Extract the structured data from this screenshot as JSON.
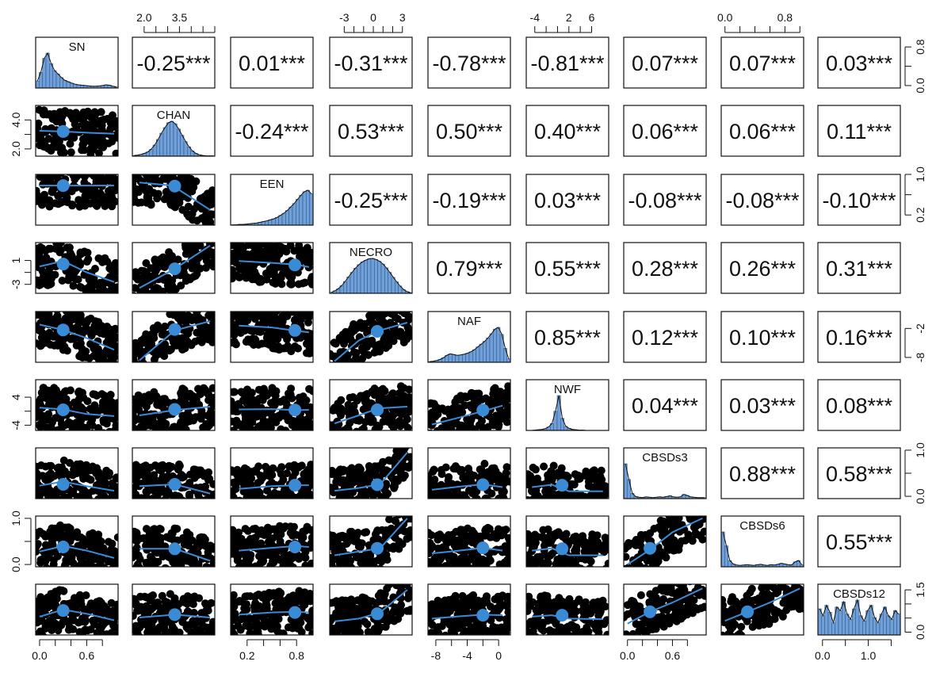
{
  "chart_data": {
    "type": "scatterplot-matrix",
    "variables": [
      "SN",
      "CHAN",
      "EEN",
      "NECRO",
      "NAF",
      "NWF",
      "CBSDs3",
      "CBSDs6",
      "CBSDs12"
    ],
    "correlation_matrix": [
      [
        "",
        "-0.25***",
        "0.01***",
        "-0.31***",
        "-0.78***",
        "-0.81***",
        "0.07***",
        "0.07***",
        "0.03***"
      ],
      [
        "",
        "",
        "-0.24***",
        "0.53***",
        "0.50***",
        "0.40***",
        "0.06***",
        "0.06***",
        "0.11***"
      ],
      [
        "",
        "",
        "",
        "-0.25***",
        "-0.19***",
        "0.03***",
        "-0.08***",
        "-0.08***",
        "-0.10***"
      ],
      [
        "",
        "",
        "",
        "",
        "0.79***",
        "0.55***",
        "0.28***",
        "0.26***",
        "0.31***"
      ],
      [
        "",
        "",
        "",
        "",
        "",
        "0.85***",
        "0.12***",
        "0.10***",
        "0.16***"
      ],
      [
        "",
        "",
        "",
        "",
        "",
        "",
        "0.04***",
        "0.03***",
        "0.08***"
      ],
      [
        "",
        "",
        "",
        "",
        "",
        "",
        "",
        "0.88***",
        "0.58***"
      ],
      [
        "",
        "",
        "",
        "",
        "",
        "",
        "",
        "",
        "0.55***"
      ],
      [
        "",
        "",
        "",
        "",
        "",
        "",
        "",
        "",
        ""
      ]
    ],
    "ranges": {
      "SN": [
        -0.05,
        1.0
      ],
      "CHAN": [
        1.5,
        5.0
      ],
      "EEN": [
        0.0,
        1.0
      ],
      "NECRO": [
        -4.5,
        4.0
      ],
      "NAF": [
        -9.0,
        1.5
      ],
      "NWF": [
        -5.5,
        9.0
      ],
      "CBSDs3": [
        -0.05,
        1.05
      ],
      "CBSDs6": [
        -0.05,
        1.05
      ],
      "CBSDs12": [
        -0.1,
        1.7
      ]
    },
    "histograms": {
      "SN": [
        0.2,
        0.45,
        0.85,
        1.0,
        0.7,
        0.5,
        0.4,
        0.3,
        0.22,
        0.18,
        0.14,
        0.11,
        0.09,
        0.08,
        0.07,
        0.06,
        0.05,
        0.05,
        0.06,
        0.07,
        0.09,
        0.08,
        0.05,
        0.03
      ],
      "CHAN": [
        0.02,
        0.03,
        0.05,
        0.08,
        0.12,
        0.2,
        0.32,
        0.48,
        0.66,
        0.82,
        0.96,
        1.0,
        0.93,
        0.78,
        0.6,
        0.42,
        0.27,
        0.15,
        0.08,
        0.04,
        0.02,
        0.01,
        0.01,
        0.01
      ],
      "EEN": [
        0.01,
        0.01,
        0.02,
        0.02,
        0.03,
        0.04,
        0.05,
        0.06,
        0.08,
        0.1,
        0.12,
        0.15,
        0.18,
        0.22,
        0.28,
        0.34,
        0.42,
        0.52,
        0.62,
        0.74,
        0.86,
        0.96,
        1.0,
        0.9
      ],
      "NECRO": [
        0.03,
        0.07,
        0.13,
        0.22,
        0.34,
        0.47,
        0.6,
        0.72,
        0.82,
        0.9,
        0.95,
        0.99,
        1.0,
        0.97,
        0.92,
        0.84,
        0.73,
        0.6,
        0.46,
        0.33,
        0.21,
        0.11,
        0.05,
        0.02
      ],
      "NAF": [
        0.02,
        0.03,
        0.05,
        0.08,
        0.13,
        0.2,
        0.24,
        0.22,
        0.2,
        0.21,
        0.23,
        0.26,
        0.3,
        0.36,
        0.44,
        0.52,
        0.6,
        0.7,
        0.82,
        0.95,
        1.0,
        0.8,
        0.4,
        0.1
      ],
      "NWF": [
        0.0,
        0.0,
        0.01,
        0.02,
        0.03,
        0.05,
        0.1,
        0.2,
        0.55,
        1.0,
        0.35,
        0.12,
        0.06,
        0.03,
        0.02,
        0.01,
        0.01,
        0.0,
        0.0,
        0.0,
        0.0,
        0.0,
        0.0,
        0.0
      ],
      "CBSDs3": [
        1.0,
        0.55,
        0.15,
        0.06,
        0.04,
        0.03,
        0.05,
        0.04,
        0.03,
        0.04,
        0.05,
        0.04,
        0.06,
        0.08,
        0.05,
        0.04,
        0.05,
        0.12,
        0.09,
        0.05,
        0.04,
        0.03,
        0.03,
        0.03
      ],
      "CBSDs6": [
        1.0,
        0.6,
        0.18,
        0.08,
        0.05,
        0.04,
        0.05,
        0.06,
        0.05,
        0.04,
        0.06,
        0.07,
        0.05,
        0.04,
        0.06,
        0.05,
        0.07,
        0.1,
        0.08,
        0.06,
        0.05,
        0.14,
        0.18,
        0.06
      ],
      "CBSDs12": [
        0.75,
        0.55,
        0.85,
        0.65,
        0.35,
        0.8,
        0.7,
        0.95,
        0.6,
        0.45,
        0.75,
        1.0,
        0.55,
        0.4,
        0.7,
        0.85,
        0.5,
        0.35,
        0.6,
        0.8,
        0.55,
        0.45,
        0.7,
        0.6
      ]
    },
    "loess_lines": {
      "1-0": [
        [
          0.0,
          3.25
        ],
        [
          0.3,
          3.2
        ],
        [
          0.6,
          3.12
        ],
        [
          0.95,
          3.05
        ]
      ],
      "2-0": [
        [
          0.0,
          0.78
        ],
        [
          0.3,
          0.78
        ],
        [
          0.6,
          0.78
        ],
        [
          0.95,
          0.78
        ]
      ],
      "2-1": [
        [
          1.8,
          0.84
        ],
        [
          3.2,
          0.78
        ],
        [
          4.8,
          0.3
        ]
      ],
      "3-0": [
        [
          0.0,
          0.0
        ],
        [
          0.3,
          0.9
        ],
        [
          0.6,
          -1.0
        ],
        [
          0.95,
          -2.6
        ]
      ],
      "3-1": [
        [
          1.8,
          -3.6
        ],
        [
          3.3,
          -0.4
        ],
        [
          4.8,
          3.5
        ]
      ],
      "3-2": [
        [
          0.1,
          0.9
        ],
        [
          0.5,
          0.6
        ],
        [
          0.8,
          0.3
        ],
        [
          0.95,
          -0.1
        ]
      ],
      "4-0": [
        [
          0.0,
          -1.2
        ],
        [
          0.3,
          -2.3
        ],
        [
          0.6,
          -4.0
        ],
        [
          0.95,
          -6.4
        ]
      ],
      "4-1": [
        [
          1.8,
          -8.6
        ],
        [
          3.3,
          -2.4
        ],
        [
          4.8,
          -0.5
        ]
      ],
      "4-2": [
        [
          0.1,
          -1.4
        ],
        [
          0.5,
          -1.8
        ],
        [
          0.8,
          -2.5
        ],
        [
          0.95,
          -2.8
        ]
      ],
      "4-3": [
        [
          -4.0,
          -8.8
        ],
        [
          -1.5,
          -4.5
        ],
        [
          0.5,
          -2.5
        ],
        [
          3.5,
          -0.8
        ]
      ],
      "5-0": [
        [
          0.0,
          1.0
        ],
        [
          0.3,
          0.5
        ],
        [
          0.6,
          -0.8
        ],
        [
          0.95,
          -1.4
        ]
      ],
      "5-1": [
        [
          1.8,
          -1.2
        ],
        [
          3.3,
          0.3
        ],
        [
          4.8,
          1.3
        ]
      ],
      "5-2": [
        [
          0.1,
          0.5
        ],
        [
          0.5,
          0.6
        ],
        [
          0.8,
          0.3
        ],
        [
          0.95,
          0.4
        ]
      ],
      "5-3": [
        [
          -4.0,
          -3.5
        ],
        [
          -1.5,
          -1.2
        ],
        [
          0.5,
          0.8
        ],
        [
          3.5,
          1.3
        ]
      ],
      "5-4": [
        [
          -8.5,
          -3.8
        ],
        [
          -5.0,
          -1.8
        ],
        [
          -2.0,
          0.0
        ],
        [
          0.5,
          1.6
        ]
      ],
      "6-0": [
        [
          0.0,
          0.23
        ],
        [
          0.3,
          0.32
        ],
        [
          0.6,
          0.22
        ],
        [
          0.95,
          0.12
        ]
      ],
      "6-1": [
        [
          1.8,
          0.22
        ],
        [
          3.3,
          0.26
        ],
        [
          4.8,
          0.06
        ]
      ],
      "6-2": [
        [
          0.1,
          0.16
        ],
        [
          0.5,
          0.22
        ],
        [
          0.8,
          0.24
        ],
        [
          0.95,
          0.24
        ]
      ],
      "6-3": [
        [
          -4.0,
          0.12
        ],
        [
          -1.5,
          0.18
        ],
        [
          0.7,
          0.26
        ],
        [
          3.5,
          0.95
        ]
      ],
      "6-4": [
        [
          -8.5,
          0.14
        ],
        [
          -5.0,
          0.21
        ],
        [
          -2.0,
          0.26
        ],
        [
          0.5,
          0.2
        ]
      ],
      "6-5": [
        [
          -4.5,
          0.2
        ],
        [
          -1.0,
          0.25
        ],
        [
          2.0,
          0.11
        ],
        [
          8.0,
          0.11
        ]
      ],
      "7-0": [
        [
          0.0,
          0.28
        ],
        [
          0.3,
          0.4
        ],
        [
          0.6,
          0.3
        ],
        [
          0.95,
          0.14
        ]
      ],
      "7-1": [
        [
          1.8,
          0.34
        ],
        [
          3.3,
          0.34
        ],
        [
          4.8,
          0.08
        ]
      ],
      "7-2": [
        [
          0.1,
          0.3
        ],
        [
          0.5,
          0.36
        ],
        [
          0.8,
          0.4
        ],
        [
          0.95,
          0.38
        ]
      ],
      "7-3": [
        [
          -4.0,
          0.2
        ],
        [
          -1.5,
          0.28
        ],
        [
          0.7,
          0.35
        ],
        [
          3.5,
          1.0
        ]
      ],
      "7-4": [
        [
          -8.5,
          0.24
        ],
        [
          -5.0,
          0.3
        ],
        [
          -2.0,
          0.36
        ],
        [
          0.5,
          0.3
        ]
      ],
      "7-5": [
        [
          -4.5,
          0.3
        ],
        [
          -1.0,
          0.35
        ],
        [
          2.0,
          0.2
        ],
        [
          8.0,
          0.2
        ]
      ],
      "7-6": [
        [
          0.0,
          0.0
        ],
        [
          0.3,
          0.32
        ],
        [
          0.6,
          0.7
        ],
        [
          1.0,
          1.0
        ]
      ],
      "8-0": [
        [
          0.0,
          0.55
        ],
        [
          0.3,
          0.8
        ],
        [
          0.6,
          0.65
        ],
        [
          0.95,
          0.42
        ]
      ],
      "8-1": [
        [
          1.8,
          0.52
        ],
        [
          3.3,
          0.62
        ],
        [
          4.8,
          0.52
        ]
      ],
      "8-2": [
        [
          0.1,
          0.62
        ],
        [
          0.5,
          0.7
        ],
        [
          0.8,
          0.72
        ],
        [
          0.95,
          0.7
        ]
      ],
      "8-3": [
        [
          -4.0,
          0.38
        ],
        [
          -1.5,
          0.48
        ],
        [
          0.7,
          0.7
        ],
        [
          3.5,
          1.5
        ]
      ],
      "8-4": [
        [
          -8.5,
          0.48
        ],
        [
          -5.0,
          0.56
        ],
        [
          -2.0,
          0.62
        ],
        [
          0.5,
          0.6
        ]
      ],
      "8-5": [
        [
          -4.5,
          0.55
        ],
        [
          -1.0,
          0.6
        ],
        [
          2.0,
          0.48
        ],
        [
          8.0,
          0.46
        ]
      ],
      "8-6": [
        [
          0.0,
          0.3
        ],
        [
          0.3,
          0.72
        ],
        [
          0.6,
          1.05
        ],
        [
          1.0,
          1.55
        ]
      ],
      "8-7": [
        [
          0.0,
          0.4
        ],
        [
          0.3,
          0.72
        ],
        [
          0.6,
          1.05
        ],
        [
          1.0,
          1.55
        ]
      ]
    },
    "mean_points": {
      "1-0": [
        0.3,
        3.2
      ],
      "2-0": [
        0.3,
        0.78
      ],
      "2-1": [
        3.3,
        0.77
      ],
      "3-0": [
        0.3,
        0.4
      ],
      "3-1": [
        3.3,
        -0.4
      ],
      "3-2": [
        0.78,
        0.25
      ],
      "4-0": [
        0.3,
        -2.3
      ],
      "4-1": [
        3.3,
        -2.2
      ],
      "4-2": [
        0.78,
        -2.4
      ],
      "4-3": [
        0.4,
        -2.6
      ],
      "5-0": [
        0.3,
        0.4
      ],
      "5-1": [
        3.3,
        0.5
      ],
      "5-2": [
        0.78,
        0.35
      ],
      "5-3": [
        0.4,
        0.4
      ],
      "5-4": [
        -2.0,
        0.3
      ],
      "6-0": [
        0.3,
        0.26
      ],
      "6-1": [
        3.3,
        0.26
      ],
      "6-2": [
        0.78,
        0.24
      ],
      "6-3": [
        0.4,
        0.25
      ],
      "6-4": [
        -2.0,
        0.25
      ],
      "6-5": [
        0.8,
        0.24
      ],
      "7-0": [
        0.3,
        0.38
      ],
      "7-1": [
        3.3,
        0.34
      ],
      "7-2": [
        0.78,
        0.38
      ],
      "7-3": [
        0.4,
        0.35
      ],
      "7-4": [
        -2.0,
        0.36
      ],
      "7-5": [
        0.8,
        0.34
      ],
      "7-6": [
        0.3,
        0.35
      ],
      "8-0": [
        0.3,
        0.77
      ],
      "8-1": [
        3.3,
        0.62
      ],
      "8-2": [
        0.78,
        0.7
      ],
      "8-3": [
        0.4,
        0.65
      ],
      "8-4": [
        -2.0,
        0.6
      ],
      "8-5": [
        0.8,
        0.6
      ],
      "8-6": [
        0.3,
        0.72
      ],
      "8-7": [
        0.3,
        0.72
      ]
    },
    "axis_ticks": {
      "top": [
        {
          "col": 1,
          "values": [
            2.0,
            2.5,
            3.0,
            3.5,
            4.0,
            4.5,
            5.0
          ],
          "labels": {
            "2.0": "2.0",
            "3.5": "3.5"
          }
        },
        {
          "col": 3,
          "values": [
            -3,
            -2,
            -1,
            0,
            1,
            2,
            3
          ],
          "labels": {
            "-3": "-3",
            "0": "0",
            "3": "3"
          }
        },
        {
          "col": 5,
          "values": [
            -4,
            -2,
            0,
            2,
            4,
            6
          ],
          "labels": {
            "-4": "-4",
            "2": "2",
            "6": "6"
          }
        },
        {
          "col": 7,
          "values": [
            0.0,
            0.2,
            0.4,
            0.6,
            0.8,
            1.0
          ],
          "labels": {
            "0.0": "0.0",
            "0.8": "0.8"
          }
        }
      ],
      "bottom": [
        {
          "col": 0,
          "values": [
            0.0,
            0.2,
            0.4,
            0.6,
            0.8
          ],
          "labels": {
            "0.0": "0.0",
            "0.6": "0.6"
          }
        },
        {
          "col": 2,
          "values": [
            0.2,
            0.4,
            0.6,
            0.8
          ],
          "labels": {
            "0.2": "0.2",
            "0.8": "0.8"
          }
        },
        {
          "col": 4,
          "values": [
            -8,
            -6,
            -4,
            -2,
            0
          ],
          "labels": {
            "-8": "-8",
            "-4": "-4",
            "0": "0"
          }
        },
        {
          "col": 6,
          "values": [
            0.0,
            0.2,
            0.4,
            0.6,
            0.8
          ],
          "labels": {
            "0.0": "0.0",
            "0.6": "0.6"
          }
        },
        {
          "col": 8,
          "values": [
            0.0,
            0.5,
            1.0,
            1.5
          ],
          "labels": {
            "0.0": "0.0",
            "1.0": "1.0"
          }
        }
      ],
      "left": [
        {
          "row": 1,
          "values": [
            2.0,
            3.0,
            4.0
          ],
          "labels": {
            "2.0": "2.0",
            "4.0": "4.0"
          }
        },
        {
          "row": 3,
          "values": [
            -3,
            -1,
            1
          ],
          "labels": {
            "-3": "-3",
            "1": "1"
          }
        },
        {
          "row": 5,
          "values": [
            -4,
            0,
            4
          ],
          "labels": {
            "-4": "-4",
            "4": "4"
          }
        },
        {
          "row": 7,
          "values": [
            0.0,
            0.5,
            1.0
          ],
          "labels": {
            "0.0": "0.0",
            "1.0": "1.0"
          }
        }
      ],
      "right": [
        {
          "row": 0,
          "values": [
            0.0,
            0.4,
            0.8
          ],
          "labels": {
            "0.0": "0.0",
            "0.8": "0.8"
          }
        },
        {
          "row": 2,
          "values": [
            0.2,
            0.6,
            1.0
          ],
          "labels": {
            "0.2": "0.2",
            "1.0": "1.0"
          }
        },
        {
          "row": 4,
          "values": [
            -8,
            -2
          ],
          "labels": {
            "-8": "-8",
            "-2": "-2"
          }
        },
        {
          "row": 6,
          "values": [
            0.0,
            0.5,
            1.0
          ],
          "labels": {
            "0.0": "0.0",
            "1.0": "1.0"
          }
        },
        {
          "row": 8,
          "values": [
            0.0,
            0.5,
            1.0,
            1.5
          ],
          "labels": {
            "0.0": "0.0",
            "1.5": "1.5"
          }
        }
      ]
    },
    "colors": {
      "histogram_fill": "#6f9fd8",
      "histogram_stroke": "#2a4f7a",
      "fit_line": "#3a8bd6",
      "mean_point": "#3a8bd6",
      "scatter_points": "#000000",
      "panel_border": "#111111"
    }
  }
}
